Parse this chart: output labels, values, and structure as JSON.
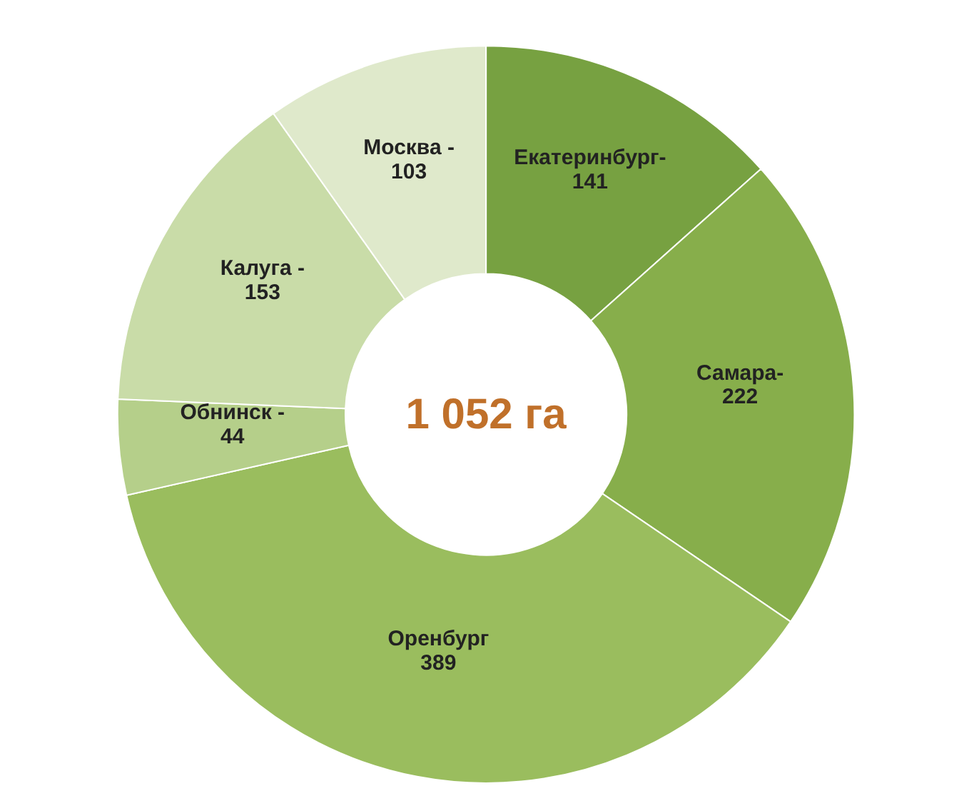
{
  "chart_data": {
    "type": "donut",
    "categories": [
      "Екатеринбург-",
      "Самара-",
      "Оренбург",
      "Обнинск -",
      "Калуга -",
      "Москва -"
    ],
    "values": [
      141,
      222,
      389,
      44,
      153,
      103
    ],
    "colors": [
      "#77a141",
      "#87ae4b",
      "#9abd5e",
      "#b5cf8a",
      "#c9dca8",
      "#dfe9cb"
    ],
    "data_labels": true,
    "annotations": [
      {
        "text": "1 052 га"
      }
    ]
  }
}
